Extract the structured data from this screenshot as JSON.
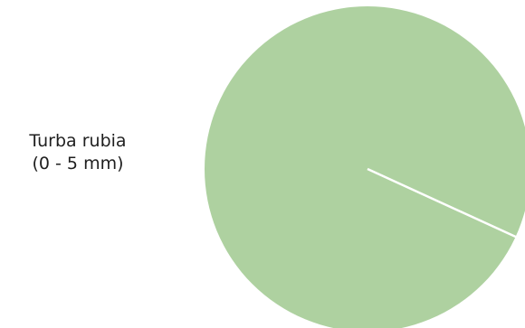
{
  "chart_data": {
    "type": "pie",
    "slices": [
      {
        "label_lines": [
          "Turba rubia",
          "(0 - 5 mm)"
        ],
        "value": 100,
        "color": "#aed1a0"
      }
    ],
    "separator_color": "#ffffff",
    "legend_position": "left"
  }
}
